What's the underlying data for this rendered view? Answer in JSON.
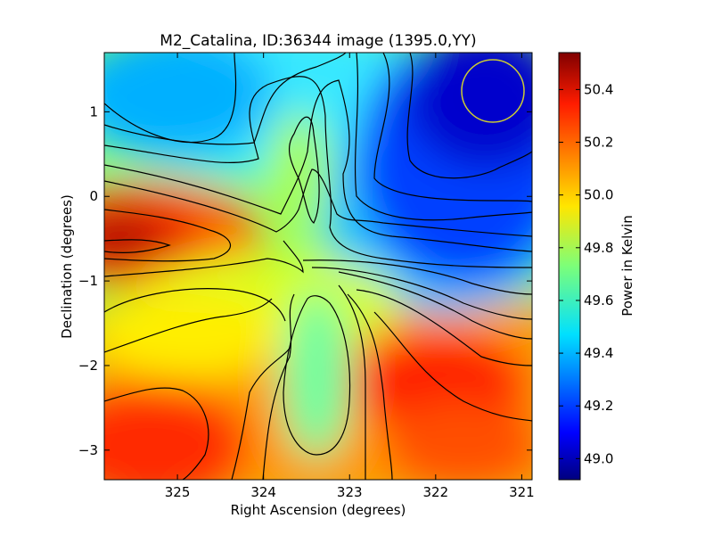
{
  "chart_data": {
    "type": "heatmap",
    "title": "M2_Catalina, ID:36344 image (1395.0,YY)",
    "xlabel": "Right Ascension (degrees)",
    "ylabel": "Declination (degrees)",
    "xlim": [
      325.85,
      320.88
    ],
    "ylim": [
      -3.35,
      1.7
    ],
    "x_ticks": [
      325,
      324,
      323,
      322,
      321
    ],
    "y_ticks": [
      1,
      0,
      -1,
      -2,
      -3
    ],
    "colorbar": {
      "label": "Power in Kelvin",
      "range": [
        48.92,
        50.54
      ],
      "ticks": [
        "50.4",
        "50.2",
        "50.0",
        "49.8",
        "49.6",
        "49.4",
        "49.2",
        "49.0"
      ],
      "colormap": "jet"
    },
    "features": [
      {
        "ra": 325.6,
        "dec": -0.5,
        "value": 50.54
      },
      {
        "ra": 321.1,
        "dec": 0.9,
        "value": 48.92
      },
      {
        "ra": 325.3,
        "dec": -3.1,
        "value": 50.35
      },
      {
        "ra": 321.9,
        "dec": -2.2,
        "value": 50.35
      },
      {
        "ra": 324.9,
        "dec": 1.4,
        "value": 49.4
      },
      {
        "ra": 323.4,
        "dec": -2.3,
        "value": 49.65
      },
      {
        "ra": 323.5,
        "dec": 0.6,
        "value": 49.75
      }
    ],
    "beam_circle": {
      "ra": 321.3,
      "dec": 1.25,
      "color": "#cccc33"
    },
    "contour_color": "#000000",
    "grid": false
  }
}
